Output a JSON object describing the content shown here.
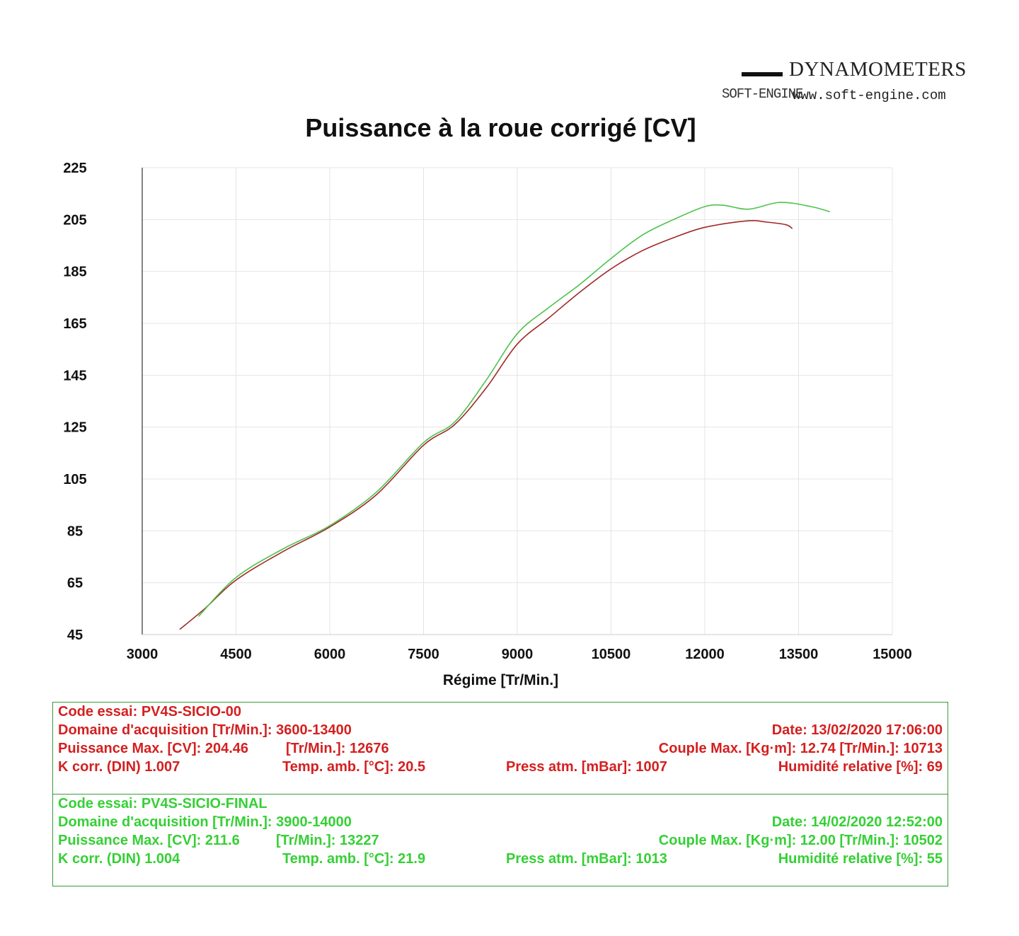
{
  "logo": {
    "brand": "DYNAMOMETERS",
    "mark": "SOFT-ENGINE",
    "url": "www.soft-engine.com"
  },
  "chart_data": {
    "type": "line",
    "title": "Puissance à la roue corrigé [CV]",
    "xlabel": "Régime [Tr/Min.]",
    "ylabel": "",
    "xlim": [
      3000,
      15000
    ],
    "ylim": [
      45,
      225
    ],
    "xticks": [
      3000,
      4500,
      6000,
      7500,
      9000,
      10500,
      12000,
      13500,
      15000
    ],
    "yticks": [
      45,
      65,
      85,
      105,
      125,
      145,
      165,
      185,
      205,
      225
    ],
    "grid": true,
    "series": [
      {
        "color": "#a02828",
        "x": [
          3600,
          4000,
          4500,
          5250,
          6000,
          6750,
          7500,
          8000,
          8500,
          9000,
          9500,
          10000,
          10500,
          11000,
          11500,
          12000,
          12676,
          13000,
          13300,
          13400
        ],
        "y": [
          47,
          55,
          66,
          77,
          86.5,
          99,
          118,
          126,
          140,
          157,
          167,
          177,
          186,
          193,
          198,
          202,
          204.5,
          204,
          203,
          201.5
        ]
      },
      {
        "color": "#4cc24c",
        "x": [
          3900,
          4500,
          5250,
          6000,
          6750,
          7500,
          8000,
          8500,
          9000,
          9500,
          10000,
          10500,
          11000,
          11500,
          12000,
          12300,
          12700,
          13200,
          13700,
          14000
        ],
        "y": [
          52,
          67,
          78,
          87,
          100,
          119,
          127,
          143,
          161,
          171,
          180,
          190,
          199,
          205,
          210,
          210.5,
          209,
          211.6,
          210,
          208
        ]
      }
    ]
  },
  "tests": [
    {
      "color": "#d42020",
      "code": "Code essai: PV4S-SICIO-00",
      "domaine": "Domaine d'acquisition [Tr/Min.]: 3600-13400",
      "date": "Date: 13/02/2020   17:06:00",
      "puissance": "Puissance Max. [CV]: 204.46",
      "puissance_rpm": "[Tr/Min.]: 12676",
      "couple": "Couple Max. [Kg·m]: 12.74   [Tr/Min.]: 10713",
      "kcorr": "K corr. (DIN)    1.007",
      "temp": "Temp. amb. [°C]: 20.5",
      "press": "Press atm. [mBar]: 1007",
      "humid": "Humidité relative [%]: 69"
    },
    {
      "color": "#35d035",
      "code": "Code essai: PV4S-SICIO-FINAL",
      "domaine": "Domaine d'acquisition [Tr/Min.]: 3900-14000",
      "date": "Date: 14/02/2020   12:52:00",
      "puissance": "Puissance Max. [CV]: 211.6",
      "puissance_rpm": "[Tr/Min.]: 13227",
      "couple": "Couple Max. [Kg·m]: 12.00   [Tr/Min.]: 10502",
      "kcorr": "K corr. (DIN)    1.004",
      "temp": "Temp. amb. [°C]: 21.9",
      "press": "Press atm. [mBar]: 1013",
      "humid": "Humidité relative [%]: 55"
    }
  ]
}
